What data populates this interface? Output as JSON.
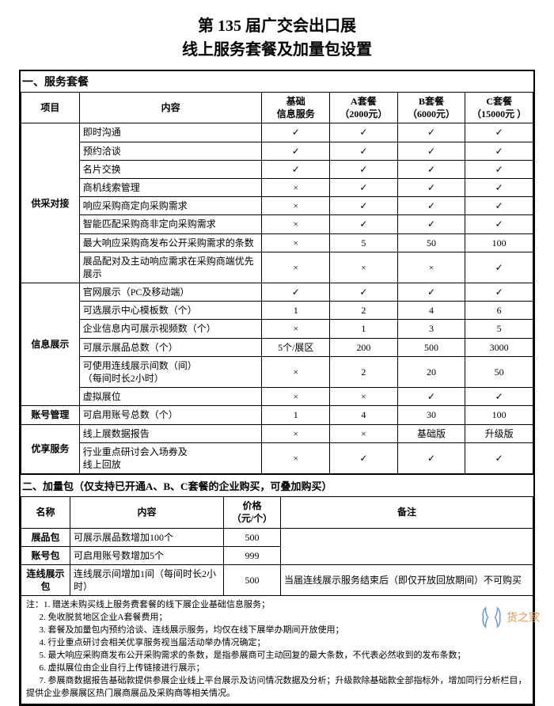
{
  "title_line1": "第 135 届广交会出口展",
  "title_line2": "线上服务套餐及加量包设置",
  "section1_head": "一、服务套餐",
  "check": "✓",
  "cross": "×",
  "table1": {
    "headers": {
      "col_project": "项目",
      "col_content": "内容",
      "col_basic": "基础\n信息服务",
      "col_a": "A套餐\n（2000元）",
      "col_b": "B套餐\n（6000元）",
      "col_c": "C套餐\n（15000元 ）"
    },
    "groups": [
      {
        "label": "供采对接",
        "rows": [
          {
            "content": "即时沟通",
            "vals": [
              "✓",
              "✓",
              "✓",
              "✓"
            ]
          },
          {
            "content": "预约洽谈",
            "vals": [
              "✓",
              "✓",
              "✓",
              "✓"
            ]
          },
          {
            "content": "名片交换",
            "vals": [
              "✓",
              "✓",
              "✓",
              "✓"
            ]
          },
          {
            "content": "商机线索管理",
            "vals": [
              "×",
              "✓",
              "✓",
              "✓"
            ]
          },
          {
            "content": "响应采购商定向采购需求",
            "vals": [
              "×",
              "✓",
              "✓",
              "✓"
            ]
          },
          {
            "content": "智能匹配采购商非定向采购需求",
            "vals": [
              "×",
              "✓",
              "✓",
              "✓"
            ]
          },
          {
            "content": "最大响应采购商发布公开采购需求的条数",
            "vals": [
              "×",
              "5",
              "50",
              "100"
            ]
          },
          {
            "content": "展品配对及主动响应需求在采购商端优先展示",
            "vals": [
              "×",
              "×",
              "×",
              "✓"
            ]
          }
        ]
      },
      {
        "label": "信息展示",
        "rows": [
          {
            "content": "官网展示（PC及移动端）",
            "vals": [
              "✓",
              "✓",
              "✓",
              "✓"
            ]
          },
          {
            "content": "可选展示中心模板数（个）",
            "vals": [
              "1",
              "2",
              "4",
              "6"
            ]
          },
          {
            "content": "企业信息内可展示视频数（个）",
            "vals": [
              "×",
              "1",
              "3",
              "5"
            ]
          },
          {
            "content": "可展示展品总数（个）",
            "vals": [
              "5个/展区",
              "200",
              "500",
              "3000"
            ]
          },
          {
            "content": "可使用连线展示间数（间）\n（每间时长2小时）",
            "vals": [
              "×",
              "2",
              "20",
              "50"
            ]
          },
          {
            "content": "虚拟展位",
            "vals": [
              "×",
              "×",
              "✓",
              "✓"
            ]
          }
        ]
      },
      {
        "label": "账号管理",
        "rows": [
          {
            "content": "可启用账号总数（个）",
            "vals": [
              "1",
              "4",
              "30",
              "100"
            ]
          }
        ]
      },
      {
        "label": "优享服务",
        "rows": [
          {
            "content": "线上展数据报告",
            "vals": [
              "×",
              "×",
              "基础版",
              "升级版"
            ]
          },
          {
            "content": "行业重点研讨会入场券及\n线上回放",
            "vals": [
              "×",
              "✓",
              "✓",
              "✓"
            ]
          }
        ]
      }
    ]
  },
  "section2_head": "二、加量包（仅支持已开通A、B、C套餐的企业购买，可叠加购买）",
  "table2": {
    "headers": {
      "col_name": "名称",
      "col_content": "内容",
      "col_price": "价格\n（元/个）",
      "col_note": "备注"
    },
    "rows": [
      {
        "name": "展品包",
        "content": "可展示展品数增加100个",
        "price": "500",
        "note": ""
      },
      {
        "name": "账号包",
        "content": "可启用账号数增加5个",
        "price": "999",
        "note": ""
      },
      {
        "name": "连线展示包",
        "content": "连线展示间增加1间（每间时长2小时）",
        "price": "500",
        "note": "当届连线展示服务结束后（即仅开放回放期间）不可购买"
      }
    ]
  },
  "notes_label": "注：",
  "notes": [
    "1. 赠送未购买线上服务费套餐的线下展企业基础信息服务；",
    "2. 免收脱贫地区企业A套餐费用；",
    "3. 套餐及加量包内预约洽谈、连线展示服务，均仅在线下展举办期间开放使用；",
    "4. 行业重点研讨会相关优享服务视当届活动举办情况确定；",
    "5. 最大响应采购商发布公开采购需求的条数，是指参展商可主动回复的最大条数，不代表必然收到的发布条数；",
    "6. 虚拟展位由企业自行上传链接进行展示；",
    "7. 参展商数据报告基础款提供参展企业线上平台展示及访问情况数据及分析；升级款除基础款全部指标外，增加同行分析栏目，提供企业参展展区热门展商展品及采购商等相关情况。"
  ],
  "watermark_text": "货之家"
}
